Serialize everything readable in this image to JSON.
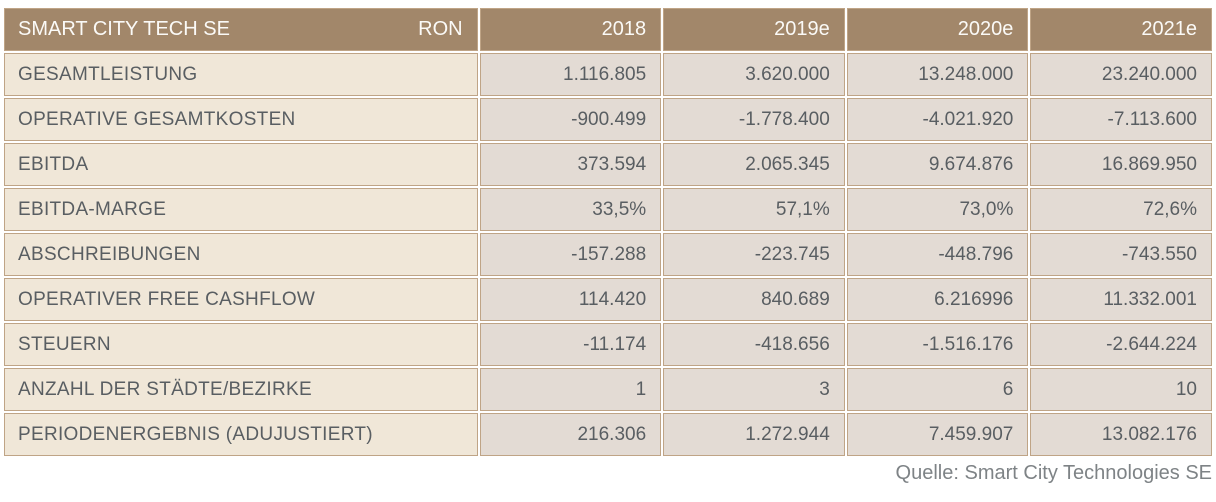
{
  "table": {
    "title": "SMART CITY TECH SE",
    "currency_label": "RON",
    "year_columns": [
      "2018",
      "2019e",
      "2020e",
      "2021e"
    ],
    "rows": [
      {
        "label": "GESAMTLEISTUNG",
        "values": [
          "1.116.805",
          "3.620.000",
          "13.248.000",
          "23.240.000"
        ]
      },
      {
        "label": "OPERATIVE GESAMTKOSTEN",
        "values": [
          "-900.499",
          "-1.778.400",
          "-4.021.920",
          "-7.113.600"
        ]
      },
      {
        "label": "EBITDA",
        "values": [
          "373.594",
          "2.065.345",
          "9.674.876",
          "16.869.950"
        ]
      },
      {
        "label": "EBITDA-MARGE",
        "values": [
          "33,5%",
          "57,1%",
          "73,0%",
          "72,6%"
        ]
      },
      {
        "label": "ABSCHREIBUNGEN",
        "values": [
          "-157.288",
          "-223.745",
          "-448.796",
          "-743.550"
        ]
      },
      {
        "label": "OPERATIVER FREE CASHFLOW",
        "values": [
          "114.420",
          "840.689",
          "6.216996",
          "11.332.001"
        ]
      },
      {
        "label": "STEUERN",
        "values": [
          "-11.174",
          "-418.656",
          "-1.516.176",
          "-2.644.224"
        ]
      },
      {
        "label": "ANZAHL DER STÄDTE/BEZIRKE",
        "values": [
          "1",
          "3",
          "6",
          "10"
        ]
      },
      {
        "label": "PERIODENERGEBNIS (ADUJUSTIERT)",
        "values": [
          "216.306",
          "1.272.944",
          "7.459.907",
          "13.082.176"
        ]
      }
    ],
    "source": "Quelle: Smart City Technologies SE"
  },
  "chart_data": {
    "type": "table",
    "title": "SMART CITY TECH SE",
    "unit": "RON",
    "columns": [
      "2018",
      "2019e",
      "2020e",
      "2021e"
    ],
    "series": [
      {
        "name": "GESAMTLEISTUNG",
        "values": [
          1116805,
          3620000,
          13248000,
          23240000
        ]
      },
      {
        "name": "OPERATIVE GESAMTKOSTEN",
        "values": [
          -900499,
          -1778400,
          -4021920,
          -7113600
        ]
      },
      {
        "name": "EBITDA",
        "values": [
          373594,
          2065345,
          9674876,
          16869950
        ]
      },
      {
        "name": "EBITDA-MARGE (%)",
        "values": [
          33.5,
          57.1,
          73.0,
          72.6
        ]
      },
      {
        "name": "ABSCHREIBUNGEN",
        "values": [
          -157288,
          -223745,
          -448796,
          -743550
        ]
      },
      {
        "name": "OPERATIVER FREE CASHFLOW",
        "values": [
          114420,
          840689,
          6216996,
          11332001
        ]
      },
      {
        "name": "STEUERN",
        "values": [
          -11174,
          -418656,
          -1516176,
          -2644224
        ]
      },
      {
        "name": "ANZAHL DER STÄDTE/BEZIRKE",
        "values": [
          1,
          3,
          6,
          10
        ]
      },
      {
        "name": "PERIODENERGEBNIS (ADUJUSTIERT)",
        "values": [
          216306,
          1272944,
          7459907,
          13082176
        ]
      }
    ],
    "source": "Quelle: Smart City Technologies SE"
  },
  "colors": {
    "header_bg": "#a2876a",
    "header_text": "#fbfaf7",
    "label_cell_bg": "#f0e7d8",
    "value_cell_bg": "#e3dbd4",
    "cell_border": "#bfa486",
    "body_text": "#595e62",
    "source_text": "#7e8386"
  }
}
